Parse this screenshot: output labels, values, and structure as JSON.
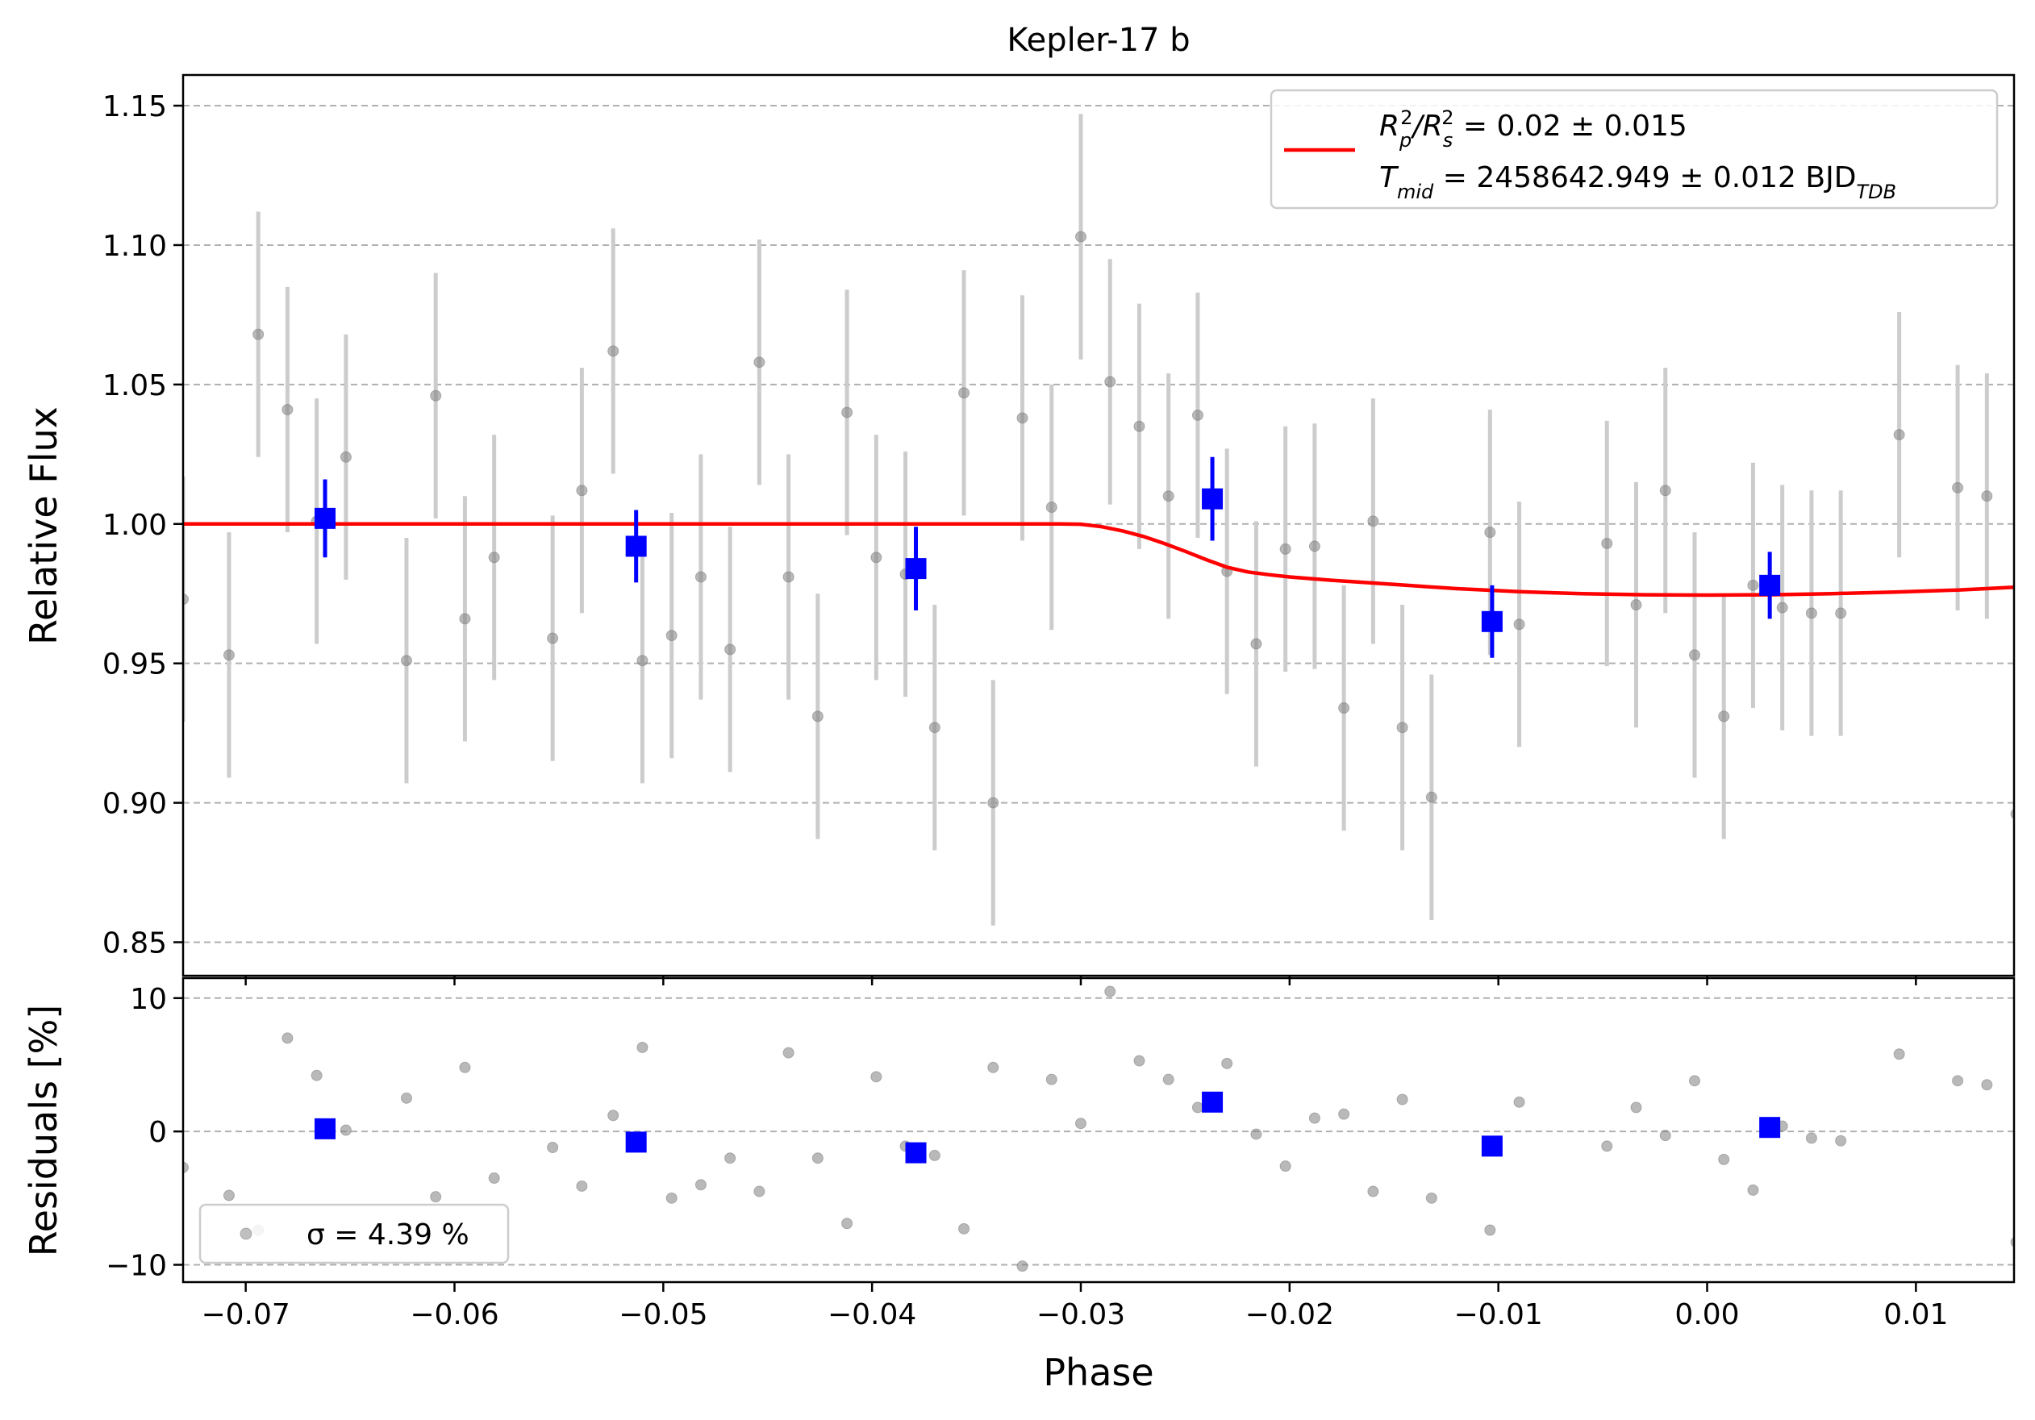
{
  "chart_data": [
    {
      "type": "scatter",
      "title": "Kepler-17 b",
      "xlabel": "",
      "ylabel": "Relative Flux",
      "xlim": [
        -0.073,
        0.0147
      ],
      "ylim": [
        0.838,
        1.161
      ],
      "yticks": [
        0.85,
        0.9,
        0.95,
        1.0,
        1.05,
        1.1,
        1.15
      ],
      "ytick_labels": [
        "0.85",
        "0.90",
        "0.95",
        "1.00",
        "1.05",
        "1.10",
        "1.15"
      ],
      "grid": "horizontal dashed",
      "legend_position": "top-right",
      "legend": {
        "line1": {
          "pre": "R",
          "sub1": "p",
          "sup1": "2",
          "mid": "/R",
          "sub2": "s",
          "sup2": "2",
          "post": " = 0.02 ± 0.015"
        },
        "line2": {
          "pre": "T",
          "sub1": "mid",
          "post": " = 2458642.949 ± 0.012 BJD",
          "sub2": "TDB"
        }
      },
      "series": [
        {
          "kind": "raw",
          "color": "#808080",
          "err": 0.044,
          "x": [
            -0.073,
            -0.0708,
            -0.0694,
            -0.068,
            -0.0666,
            -0.0652,
            -0.0623,
            -0.0609,
            -0.0595,
            -0.0581,
            -0.0553,
            -0.0539,
            -0.0524,
            -0.051,
            -0.0496,
            -0.0482,
            -0.0468,
            -0.0454,
            -0.044,
            -0.0426,
            -0.0412,
            -0.0398,
            -0.0384,
            -0.037,
            -0.0356,
            -0.0342,
            -0.0328,
            -0.0314,
            -0.03,
            -0.0286,
            -0.0272,
            -0.0258,
            -0.0244,
            -0.023,
            -0.0216,
            -0.0202,
            -0.0188,
            -0.0174,
            -0.016,
            -0.0146,
            -0.0132,
            -0.0104,
            -0.009,
            -0.0048,
            -0.0034,
            -0.002,
            -0.0006,
            0.0008,
            0.0022,
            0.0036,
            0.005,
            0.0064,
            0.0092,
            0.012,
            0.0134,
            0.0148
          ],
          "y": [
            0.973,
            0.953,
            1.068,
            1.041,
            1.001,
            1.024,
            0.951,
            1.046,
            0.966,
            0.988,
            0.959,
            1.012,
            1.062,
            0.951,
            0.96,
            0.981,
            0.955,
            1.058,
            0.981,
            0.931,
            1.04,
            0.988,
            0.982,
            0.927,
            1.047,
            0.9,
            1.038,
            1.006,
            1.103,
            1.051,
            1.035,
            1.01,
            1.039,
            0.983,
            0.957,
            0.991,
            0.992,
            0.934,
            1.001,
            0.927,
            0.902,
            0.997,
            0.964,
            0.993,
            0.971,
            1.012,
            0.953,
            0.931,
            0.978,
            0.97,
            0.968,
            0.968,
            1.032,
            1.013,
            1.01,
            0.896
          ]
        },
        {
          "kind": "binned",
          "color": "#0000ff",
          "x": [
            -0.0662,
            -0.0513,
            -0.0379,
            -0.0237,
            -0.0103,
            0.003
          ],
          "y": [
            1.002,
            0.992,
            0.984,
            1.009,
            0.965,
            0.978
          ],
          "err": [
            0.014,
            0.013,
            0.015,
            0.015,
            0.013,
            0.012
          ]
        },
        {
          "kind": "model",
          "color": "#ff0000",
          "x": [
            -0.073,
            -0.031,
            -0.03,
            -0.029,
            -0.028,
            -0.027,
            -0.026,
            -0.025,
            -0.024,
            -0.023,
            -0.022,
            -0.021,
            -0.02,
            -0.018,
            -0.015,
            -0.012,
            -0.009,
            -0.006,
            -0.003,
            0.0,
            0.003,
            0.006,
            0.009,
            0.012,
            0.0147
          ],
          "y": [
            1.0,
            1.0,
            0.9999,
            0.999,
            0.9975,
            0.9955,
            0.993,
            0.9902,
            0.9872,
            0.9845,
            0.9828,
            0.9818,
            0.981,
            0.9798,
            0.9783,
            0.9768,
            0.9757,
            0.975,
            0.9746,
            0.9745,
            0.9746,
            0.975,
            0.9756,
            0.9763,
            0.9773
          ]
        }
      ]
    },
    {
      "type": "scatter",
      "xlabel": "Phase",
      "ylabel": "Residuals [%]",
      "xlim": [
        -0.073,
        0.0147
      ],
      "ylim": [
        -11.3,
        11.5
      ],
      "yticks": [
        -10,
        0,
        10
      ],
      "ytick_labels": [
        "−10",
        "0",
        "10"
      ],
      "xticks": [
        -0.07,
        -0.06,
        -0.05,
        -0.04,
        -0.03,
        -0.02,
        -0.01,
        0.0,
        0.01
      ],
      "xtick_labels": [
        "−0.07",
        "−0.06",
        "−0.05",
        "−0.04",
        "−0.03",
        "−0.02",
        "−0.01",
        "0.00",
        "0.01"
      ],
      "grid": "horizontal dashed",
      "legend_position": "bottom-left",
      "legend": {
        "sigma_label": "σ = 4.39 %"
      },
      "series": [
        {
          "kind": "raw",
          "color": "#808080",
          "x": [
            -0.073,
            -0.0708,
            -0.0694,
            -0.068,
            -0.0666,
            -0.0652,
            -0.0623,
            -0.0609,
            -0.0595,
            -0.0581,
            -0.0553,
            -0.0539,
            -0.0524,
            -0.051,
            -0.0496,
            -0.0482,
            -0.0468,
            -0.0454,
            -0.044,
            -0.0426,
            -0.0412,
            -0.0398,
            -0.0384,
            -0.037,
            -0.0356,
            -0.0342,
            -0.0328,
            -0.0314,
            -0.03,
            -0.0286,
            -0.0272,
            -0.0258,
            -0.0244,
            -0.023,
            -0.0216,
            -0.0202,
            -0.0188,
            -0.0174,
            -0.016,
            -0.0146,
            -0.0132,
            -0.0104,
            -0.009,
            -0.0048,
            -0.0034,
            -0.002,
            -0.0006,
            0.0008,
            0.0022,
            0.0036,
            0.005,
            0.0064,
            0.0092,
            0.012,
            0.0134,
            0.0148
          ],
          "y": [
            -2.7,
            -4.8,
            -7.4,
            7.0,
            4.2,
            0.1,
            2.5,
            -4.9,
            4.8,
            -3.5,
            -1.2,
            -4.1,
            1.2,
            6.3,
            -5.0,
            -4.0,
            -2.0,
            -4.5,
            5.9,
            -2.0,
            -6.9,
            4.1,
            -1.1,
            -1.8,
            -7.3,
            4.8,
            -10.1,
            3.9,
            0.6,
            10.5,
            5.3,
            3.9,
            1.8,
            5.1,
            -0.2,
            -2.6,
            1.0,
            1.3,
            -4.5,
            2.4,
            -5.0,
            -7.4,
            2.2,
            -1.1,
            1.8,
            -0.3,
            3.8,
            -2.1,
            -4.4,
            0.4,
            -0.5,
            -0.7,
            5.8,
            3.8,
            3.5,
            -8.3
          ]
        },
        {
          "kind": "binned",
          "color": "#0000ff",
          "x": [
            -0.0662,
            -0.0513,
            -0.0379,
            -0.0237,
            -0.0103,
            0.003
          ],
          "y": [
            0.2,
            -0.8,
            -1.6,
            2.2,
            -1.1,
            0.3
          ]
        }
      ]
    }
  ]
}
